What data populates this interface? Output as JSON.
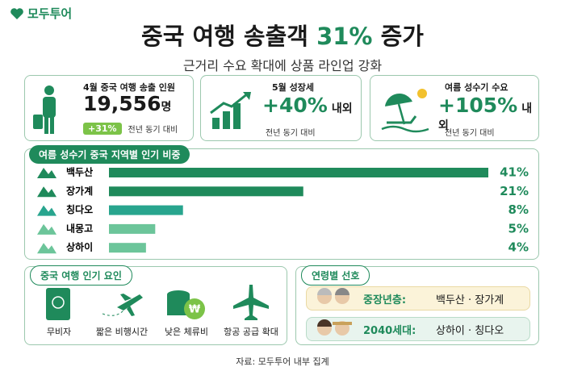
{
  "header": {
    "logo": "모두투어",
    "title_prefix": "중국 여행 송출객",
    "title_highlight": "31%",
    "title_suffix": "증가",
    "subtitle": "근거리 수요 확대에 상품 라인업 강화"
  },
  "cards": [
    {
      "label": "4월 중국 여행 송출 인원",
      "value": "19,556",
      "unit": "명",
      "badge": "+31%",
      "note": "전년 동기 대비"
    },
    {
      "label": "5월 성장세",
      "value": "+40%",
      "unit": "내외",
      "note": "전년 동기 대비"
    },
    {
      "label": "여름 성수기 수요",
      "value": "+105%",
      "unit": "내외",
      "note": "전년 동기 대비"
    }
  ],
  "regional_share": {
    "title": "여름 성수기 중국 지역별 인기 비중",
    "categories": [
      "백두산",
      "장가계",
      "칭다오",
      "내몽고",
      "상하이"
    ],
    "values": [
      41,
      21,
      8,
      5,
      4
    ],
    "value_labels": [
      "41%",
      "21%",
      "8%",
      "5%",
      "4%"
    ],
    "colors": [
      "#1f8a5b",
      "#1f8a5b",
      "#28a58e",
      "#6cc59a",
      "#6cc59a"
    ]
  },
  "factors": {
    "title": "중국 여행 인기 요인",
    "items": [
      "무비자",
      "짧은 비행시간",
      "낮은 체류비",
      "항공 공급 확대"
    ]
  },
  "age_preference": {
    "title": "연령별 선호",
    "rows": [
      {
        "group": "중장년층:",
        "destinations": "백두산 · 장가계"
      },
      {
        "group": "2040세대:",
        "destinations": "상하이 · 칭다오"
      }
    ]
  },
  "source": "자료: 모두투어 내부 집계"
}
